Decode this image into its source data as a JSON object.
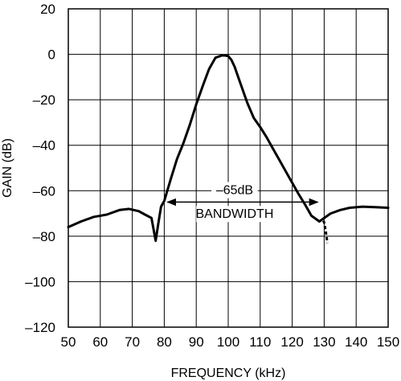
{
  "chart_data": {
    "type": "line",
    "xlabel": "FREQUENCY (kHz)",
    "ylabel": "GAIN (dB)",
    "xlim": [
      50,
      150
    ],
    "ylim": [
      -120,
      20
    ],
    "xticks": [
      50,
      60,
      70,
      80,
      90,
      100,
      110,
      120,
      130,
      140,
      150
    ],
    "yticks": [
      20,
      0,
      -20,
      -40,
      -60,
      -80,
      -100,
      -120
    ],
    "ytick_labels": [
      "20",
      "0",
      "–20",
      "–40",
      "–60",
      "–80",
      "–100",
      "–120"
    ],
    "grid": true,
    "series": [
      {
        "x": [
          50,
          54,
          58,
          62,
          66,
          69,
          72,
          74,
          76,
          77.3,
          78.2,
          79,
          80,
          82,
          84,
          86,
          88,
          90,
          92,
          94,
          96,
          98,
          99,
          100,
          101,
          102,
          103,
          104,
          106,
          108,
          110,
          112,
          114,
          116,
          118,
          120,
          122,
          124,
          126,
          128.5
        ],
        "y": [
          -76,
          -73.5,
          -71.5,
          -70.5,
          -68.5,
          -68,
          -69,
          -70.5,
          -72,
          -82,
          -74,
          -67,
          -64.5,
          -55,
          -46,
          -39,
          -31,
          -22,
          -14,
          -6.5,
          -1.5,
          -0.5,
          -0.5,
          -0.8,
          -2.5,
          -5.5,
          -9.5,
          -13.5,
          -21.5,
          -28,
          -32,
          -36.5,
          -41.5,
          -46.5,
          -51.5,
          -56.5,
          -61.5,
          -66,
          -71,
          -73.5
        ]
      },
      {
        "x": [
          128.5,
          129.5,
          130,
          130.5,
          131
        ],
        "y": [
          -73.5,
          -72.5,
          -74,
          -78,
          -83
        ],
        "style": "dashed"
      },
      {
        "x": [
          129.5,
          132,
          135,
          138,
          142,
          146,
          150
        ],
        "y": [
          -72.5,
          -70,
          -68.5,
          -67.5,
          -67,
          -67.2,
          -67.5
        ]
      }
    ],
    "annotations": [
      {
        "text": "–65dB",
        "x": 102,
        "y": -61.5
      },
      {
        "text": "BANDWIDTH",
        "x": 102,
        "y": -72
      }
    ],
    "bandwidth_arrow": {
      "x_start": 80,
      "x_end": 129,
      "y": -65
    }
  }
}
